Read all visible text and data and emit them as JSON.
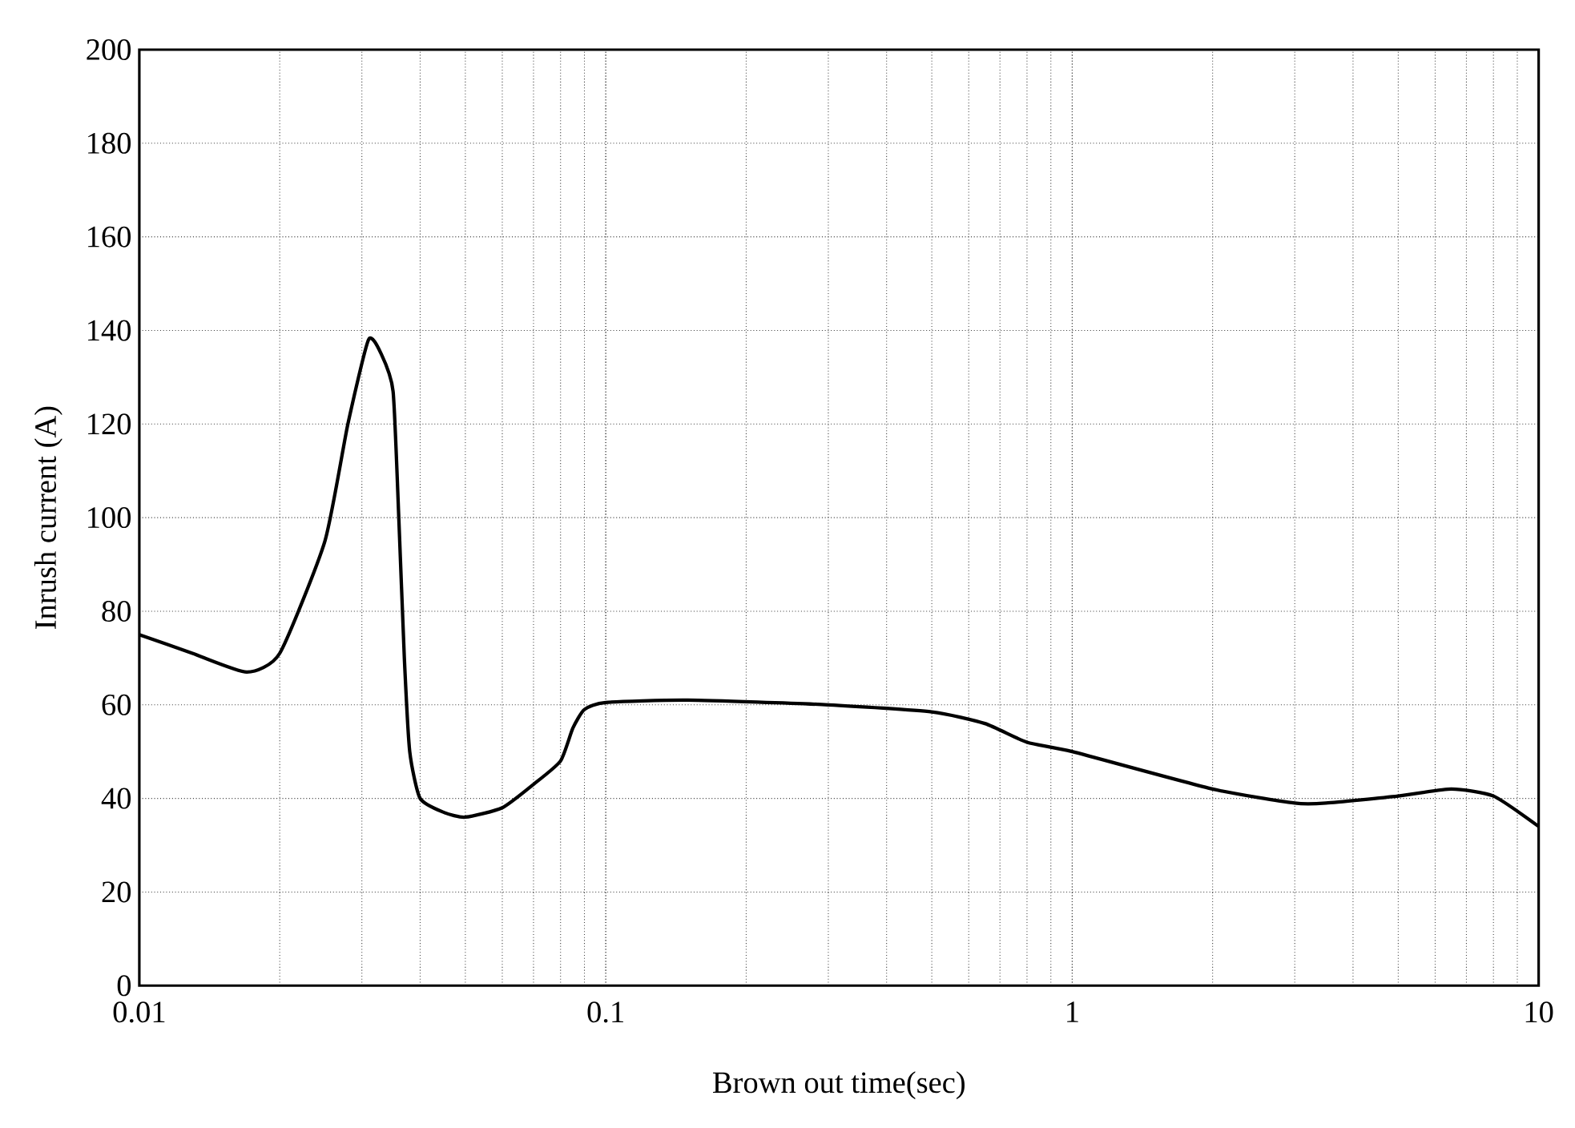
{
  "chart_data": {
    "type": "line",
    "xlabel": "Brown out time(sec)",
    "ylabel": "Inrush current (A)",
    "log": "x",
    "grid": true,
    "marker": "none",
    "line_style": "solid",
    "xlim": [
      0.01,
      10
    ],
    "xticks": [
      0.01,
      0.1,
      1,
      10
    ],
    "ylim": [
      0,
      200
    ],
    "yticks": [
      0,
      20,
      40,
      60,
      80,
      100,
      120,
      140,
      160,
      180,
      200
    ],
    "x": [
      0.01,
      0.013,
      0.017,
      0.02,
      0.025,
      0.028,
      0.031,
      0.033,
      0.035,
      0.036,
      0.037,
      0.038,
      0.04,
      0.045,
      0.05,
      0.06,
      0.07,
      0.08,
      0.085,
      0.09,
      0.1,
      0.15,
      0.3,
      0.5,
      0.65,
      0.8,
      1,
      2,
      3,
      3.5,
      5,
      6.5,
      8,
      10
    ],
    "series": [
      {
        "color": "#000000",
        "values": [
          75,
          71,
          67,
          71,
          95,
          120,
          138,
          135,
          127,
          100,
          70,
          50,
          40,
          37,
          36,
          38,
          43,
          48,
          55,
          59,
          60.5,
          61,
          60,
          58.5,
          56,
          52,
          50,
          42,
          39,
          39,
          40.5,
          42,
          40.5,
          34
        ]
      }
    ]
  }
}
